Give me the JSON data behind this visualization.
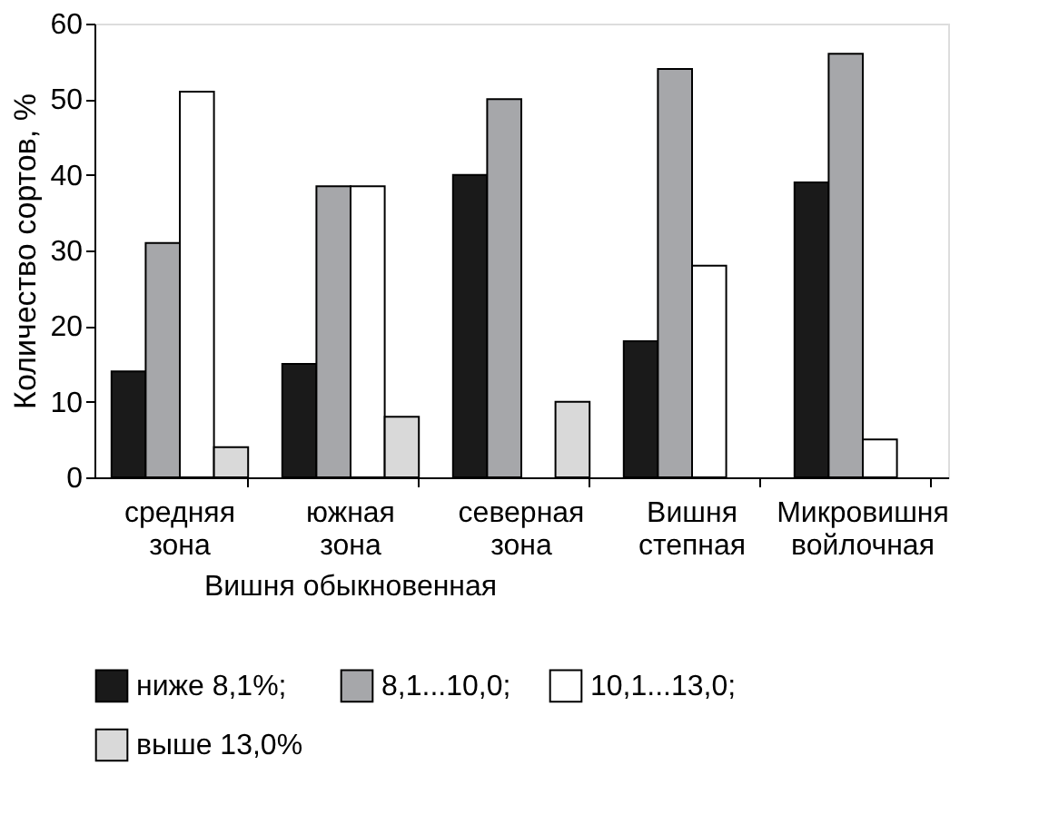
{
  "chart_data": {
    "type": "bar",
    "categories": [
      "средняя зона",
      "южная зона",
      "северная зона",
      "Вишня степная",
      "Микровишня войлочная"
    ],
    "series": [
      {
        "name": "ниже 8,1%;",
        "color": "#1a1a1a",
        "values": [
          14,
          15,
          40,
          18,
          39
        ]
      },
      {
        "name": "8,1...10,0;",
        "color": "#a6a7aa",
        "values": [
          31,
          38.5,
          50,
          54,
          56
        ]
      },
      {
        "name": "10,1...13,0;",
        "color": "#ffffff",
        "values": [
          51,
          38.5,
          null,
          28,
          5
        ]
      },
      {
        "name": "выше 13,0%",
        "color": "#d9d9d9",
        "values": [
          4,
          8,
          10,
          null,
          null
        ]
      }
    ],
    "ylabel": "Количество сортов, %",
    "annotations": [
      "Вишня обыкновенная"
    ],
    "ylim": [
      0,
      60
    ],
    "yticks": [
      0,
      10,
      20,
      30,
      40,
      50,
      60
    ],
    "grid": false,
    "legend": "bottom"
  }
}
